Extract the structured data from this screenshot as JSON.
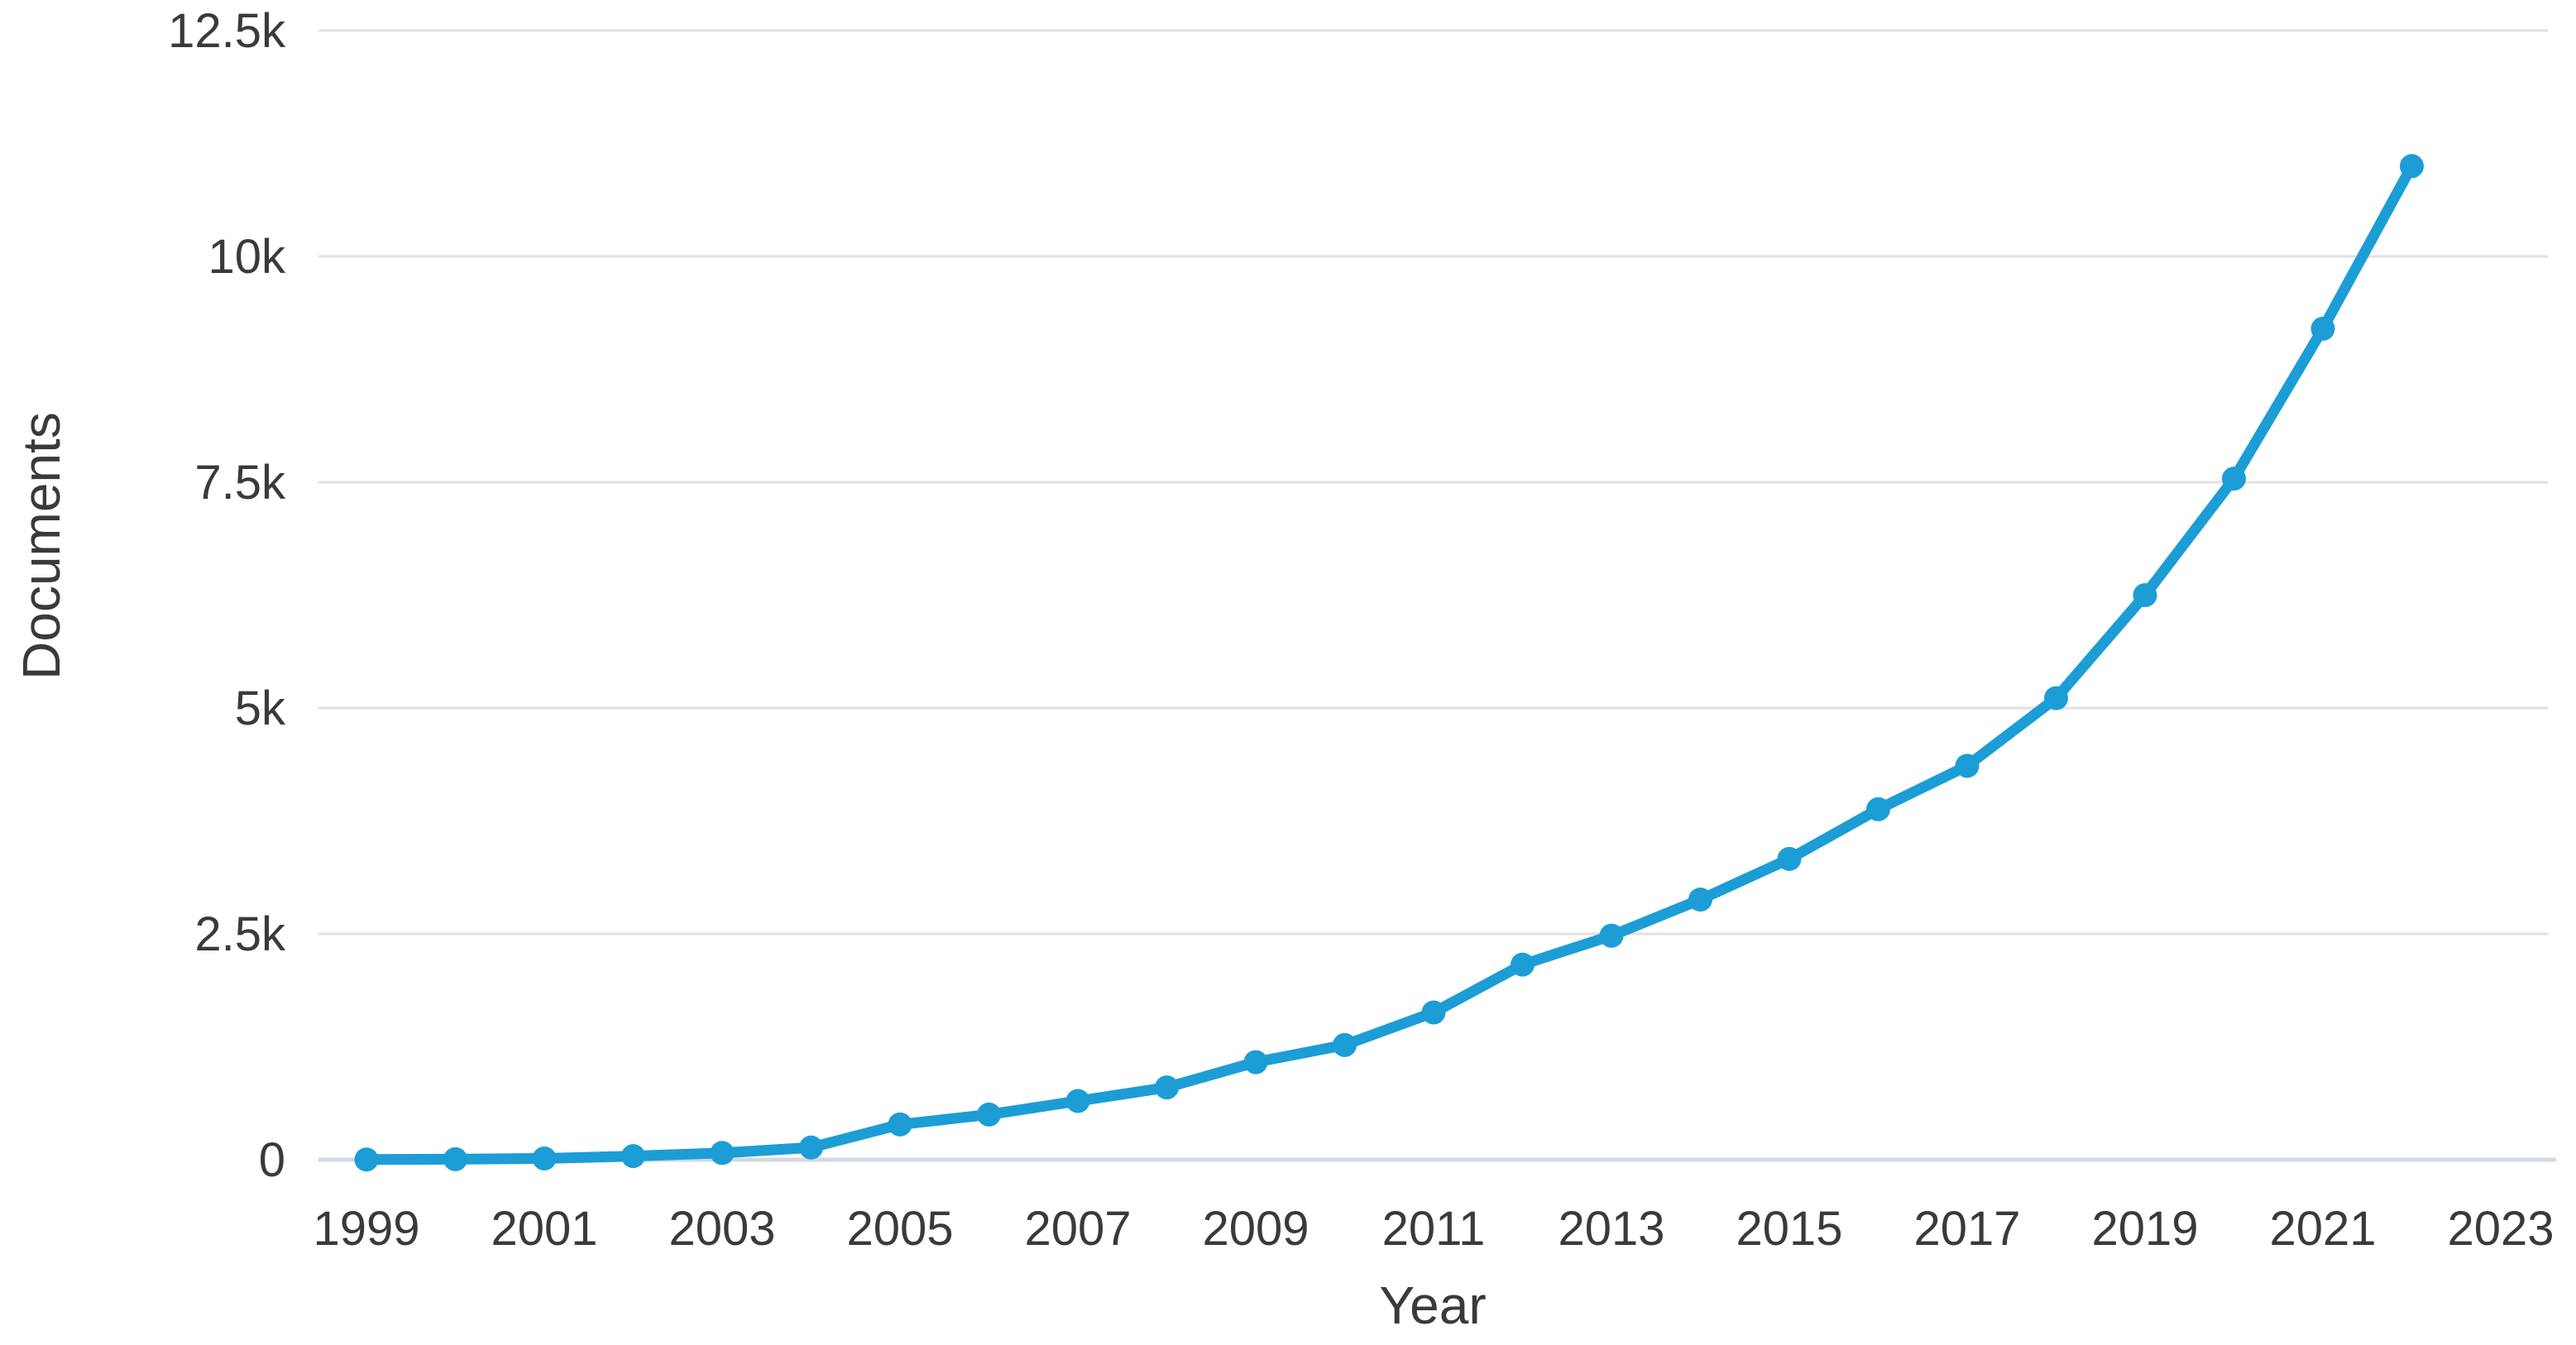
{
  "chart": {
    "y_axis_title": "Documents",
    "x_axis_title": "Year",
    "y_tick_labels": [
      "0",
      "2.5k",
      "5k",
      "7.5k",
      "10k",
      "12.5k"
    ],
    "x_tick_labels": [
      "1999",
      "2001",
      "2003",
      "2005",
      "2007",
      "2009",
      "2011",
      "2013",
      "2015",
      "2017",
      "2019",
      "2021",
      "2023"
    ],
    "colors": {
      "series": "#1c9dd6",
      "gridline": "#e1e1e1",
      "zero_axis_line": "#d3d8e2",
      "text": "#3a3a3a"
    }
  },
  "chart_data": {
    "type": "line",
    "title": "",
    "xlabel": "Year",
    "ylabel": "Documents",
    "x": [
      1999,
      2000,
      2001,
      2002,
      2003,
      2004,
      2005,
      2006,
      2007,
      2008,
      2009,
      2010,
      2011,
      2012,
      2013,
      2014,
      2015,
      2016,
      2017,
      2018,
      2019,
      2020,
      2021,
      2022
    ],
    "series": [
      {
        "name": "Documents",
        "values": [
          2,
          6,
          14,
          40,
          75,
          135,
          390,
          500,
          650,
          800,
          1080,
          1270,
          1630,
          2160,
          2480,
          2880,
          3330,
          3880,
          4360,
          5110,
          6250,
          7540,
          9200,
          11000
        ]
      }
    ],
    "ylim": [
      0,
      12500
    ],
    "xlim": [
      1999,
      2023
    ],
    "y_tick_step": 2500,
    "x_tick_step": 2,
    "grid": "horizontal",
    "legend": "none",
    "marker": "circle",
    "series_color": "#1c9dd6"
  }
}
